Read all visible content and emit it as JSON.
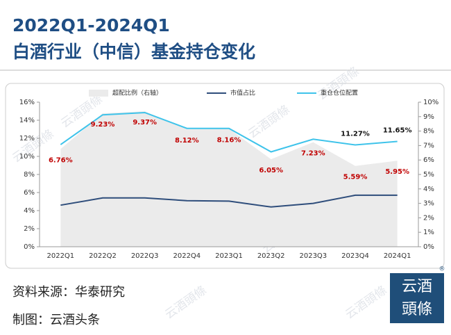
{
  "header": {
    "title_line1": "2022Q1-2024Q1",
    "title_line2": "白酒行业（中信）基金持仓变化"
  },
  "chart_data": {
    "type": "line",
    "categories": [
      "2022Q1",
      "2022Q2",
      "2022Q3",
      "2022Q4",
      "2023Q1",
      "2023Q2",
      "2023Q3",
      "2023Q4",
      "2024Q1"
    ],
    "series": [
      {
        "name": "超配比例（右轴）",
        "kind": "area",
        "axis": "y2",
        "color": "#ebebeb",
        "values": [
          6.76,
          9.23,
          9.37,
          8.12,
          8.16,
          6.05,
          7.23,
          5.59,
          5.95
        ],
        "value_labels": [
          "6.76%",
          "9.23%",
          "9.37%",
          "8.12%",
          "8.16%",
          "6.05%",
          "7.23%",
          "5.59%",
          "5.95%"
        ],
        "label_color": "#c00000"
      },
      {
        "name": "市值占比",
        "kind": "line",
        "color": "#2e4d7b",
        "values": [
          4.6,
          5.4,
          5.4,
          5.1,
          5.05,
          4.4,
          4.8,
          5.7,
          5.7
        ]
      },
      {
        "name": "重仓仓位配置",
        "kind": "line",
        "color": "#3ec3ea",
        "values": [
          11.3,
          14.6,
          14.85,
          13.1,
          13.1,
          10.5,
          11.9,
          11.27,
          11.65
        ],
        "value_labels": [
          null,
          null,
          null,
          null,
          null,
          null,
          null,
          "11.27%",
          "11.65%"
        ],
        "label_color": "#111111"
      }
    ],
    "ylim": [
      0,
      16
    ],
    "yticks": [
      {
        "value": 0,
        "label": "0%"
      },
      {
        "value": 2,
        "label": "2%"
      },
      {
        "value": 4,
        "label": "4%"
      },
      {
        "value": 6,
        "label": "6%"
      },
      {
        "value": 8,
        "label": "8%"
      },
      {
        "value": 10,
        "label": "10%"
      },
      {
        "value": 12,
        "label": "12%"
      },
      {
        "value": 14,
        "label": "14%"
      },
      {
        "value": 16,
        "label": "16%"
      }
    ],
    "y2lim": [
      0,
      10
    ],
    "y2ticks": [
      {
        "value": 0,
        "label": "0%"
      },
      {
        "value": 1,
        "label": "1%"
      },
      {
        "value": 2,
        "label": "2%"
      },
      {
        "value": 3,
        "label": "3%"
      },
      {
        "value": 4,
        "label": "4%"
      },
      {
        "value": 5,
        "label": "5%"
      },
      {
        "value": 6,
        "label": "6%"
      },
      {
        "value": 7,
        "label": "7%"
      },
      {
        "value": 8,
        "label": "8%"
      },
      {
        "value": 9,
        "label": "9%"
      },
      {
        "value": 10,
        "label": "10%"
      }
    ],
    "grid": false
  },
  "footer": {
    "source": "资料来源：华泰研究",
    "credit": "制图：云酒头条"
  },
  "logo": {
    "line1": "云酒",
    "line2": "頭條",
    "mark": "®"
  },
  "watermark": "云酒頭條"
}
